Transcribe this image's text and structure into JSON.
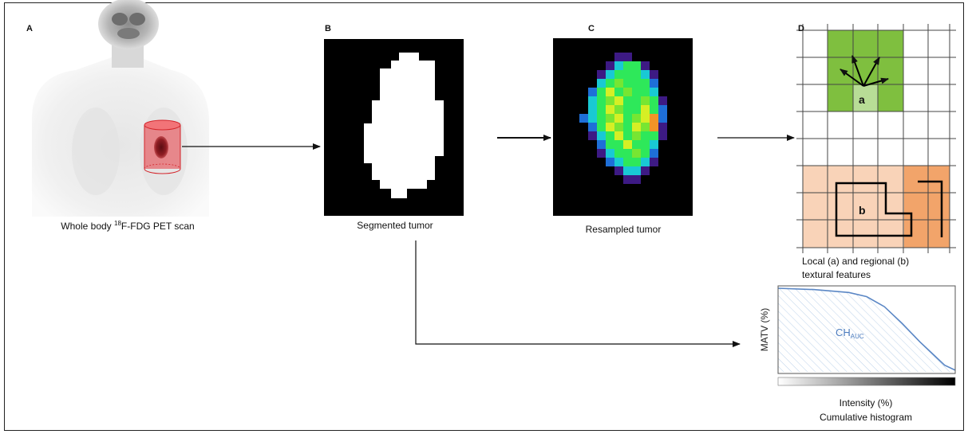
{
  "panels": {
    "a": {
      "letter": "A",
      "caption_prefix": "Whole body ",
      "caption_sup": "18",
      "caption_suffix": "F-FDG PET scan"
    },
    "b": {
      "letter": "B",
      "caption": "Segmented tumor"
    },
    "c": {
      "letter": "C",
      "caption": "Resampled tumor"
    },
    "d": {
      "letter": "D",
      "local_label": "a",
      "regional_label": "b",
      "caption_line1": "Local (a) and regional (b)",
      "caption_line2": "textural features"
    }
  },
  "histogram": {
    "ylabel": "MATV (%)",
    "auc_label": "CH",
    "auc_sub": "AUC",
    "xlabel": "Intensity (%)",
    "caption": "Cumulative histogram"
  },
  "colors": {
    "tumor_roi": "#e8393f",
    "local_region": "#7fbf3f",
    "regional_region_light": "#f9d3b8",
    "regional_region_dark": "#f2a46a",
    "histogram_line": "#5b87c5"
  }
}
